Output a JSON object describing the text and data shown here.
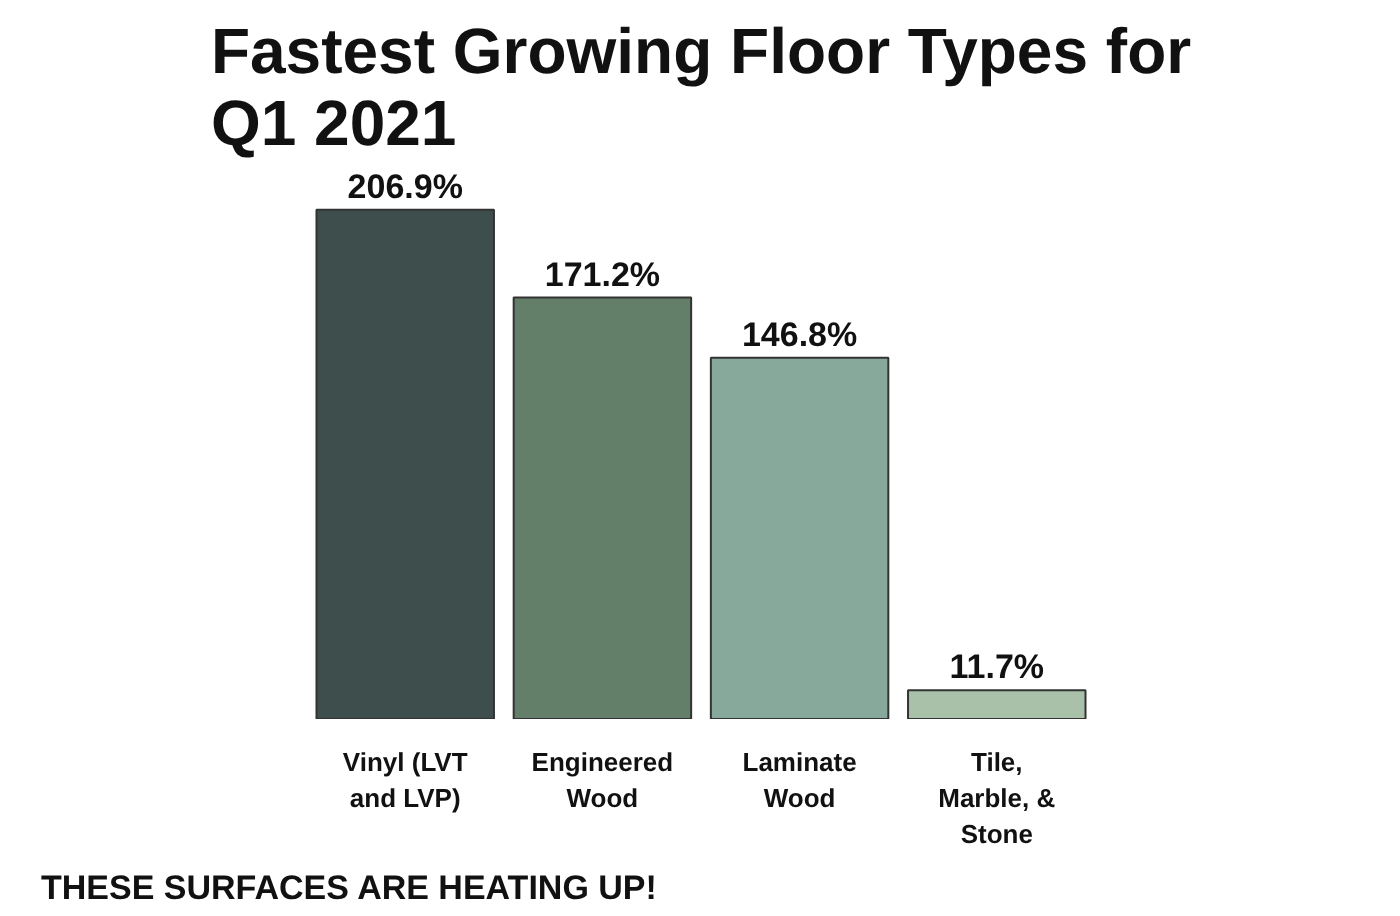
{
  "chart_data": {
    "type": "bar",
    "title": "Fastest Growing Floor Types for Q1 2021",
    "categories": [
      "Vinyl (LVT and LVP)",
      "Engineered Wood",
      "Laminate Wood",
      "Tile, Marble, & Stone"
    ],
    "values": [
      206.9,
      171.2,
      146.8,
      11.7
    ],
    "colors": [
      "#3e4e4c",
      "#637e69",
      "#86a99c",
      "#a9c1a9"
    ],
    "value_labels": [
      "206.9%",
      "171.2%",
      "146.8%",
      "11.7%"
    ],
    "annotations": [
      "THESE SURFACES ARE HEATING UP!"
    ]
  }
}
